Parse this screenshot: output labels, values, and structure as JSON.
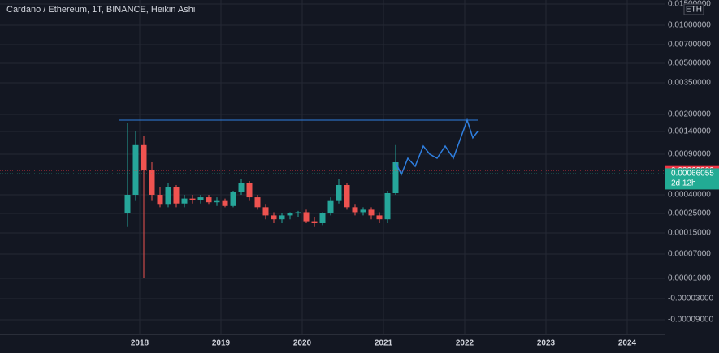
{
  "chart_data": {
    "type": "candlestick",
    "title": "Cardano / Ethereum, 1T, BINANCE, Heikin Ashi",
    "currency": "ETH",
    "up_color": "#26a69a",
    "down_color": "#ef5350",
    "grid": true,
    "x": [
      2017.85,
      2017.95,
      2018.05,
      2018.15,
      2018.25,
      2018.35,
      2018.45,
      2018.55,
      2018.65,
      2018.75,
      2018.85,
      2018.95,
      2019.05,
      2019.15,
      2019.25,
      2019.35,
      2019.45,
      2019.55,
      2019.65,
      2019.75,
      2019.85,
      2019.95,
      2020.05,
      2020.15,
      2020.25,
      2020.35,
      2020.45,
      2020.55,
      2020.65,
      2020.75,
      2020.85,
      2020.95,
      2021.05,
      2021.15
    ],
    "open": [
      0.00025,
      0.0004,
      0.0011,
      0.0007,
      0.0004,
      0.00032,
      0.0005,
      0.00033,
      0.00037,
      0.00036,
      0.00038,
      0.00034,
      0.00035,
      0.00031,
      0.00043,
      0.00055,
      0.00038,
      0.0003,
      0.00024,
      0.00022,
      0.00024,
      0.00025,
      0.00026,
      0.00021,
      0.0002,
      0.00025,
      0.00035,
      0.00052,
      0.0003,
      0.00026,
      0.00028,
      0.00024,
      0.00022,
      0.00042
    ],
    "high": [
      0.0017,
      0.0014,
      0.0013,
      0.0008,
      0.0005,
      0.00055,
      0.00052,
      0.0004,
      0.0004,
      0.0004,
      0.0004,
      0.00038,
      0.00037,
      0.00045,
      0.0006,
      0.00057,
      0.0004,
      0.00032,
      0.00026,
      0.00025,
      0.00026,
      0.00027,
      0.00028,
      0.00023,
      0.00026,
      0.00038,
      0.0006,
      0.00054,
      0.00032,
      0.0003,
      0.0003,
      0.00026,
      0.00045,
      0.0011
    ],
    "low": [
      0.00018,
      0.00035,
      1e-05,
      0.00035,
      0.0003,
      0.0003,
      0.0003,
      0.0003,
      0.00033,
      0.00033,
      0.00032,
      0.00031,
      0.0003,
      0.0003,
      0.0004,
      0.00035,
      0.00028,
      0.00022,
      0.0002,
      0.0002,
      0.00022,
      0.00023,
      0.0002,
      0.00018,
      0.00019,
      0.00024,
      0.00033,
      0.00028,
      0.00024,
      0.00024,
      0.00022,
      0.0002,
      0.0002,
      0.0004
    ],
    "close": [
      0.0004,
      0.0011,
      0.0007,
      0.0004,
      0.00032,
      0.0005,
      0.00033,
      0.00037,
      0.00036,
      0.00038,
      0.00034,
      0.00035,
      0.00031,
      0.00043,
      0.00055,
      0.00038,
      0.0003,
      0.00024,
      0.00022,
      0.00024,
      0.00025,
      0.00026,
      0.00021,
      0.0002,
      0.00025,
      0.00035,
      0.00052,
      0.0003,
      0.00026,
      0.00028,
      0.00024,
      0.00022,
      0.00042,
      0.0008
    ],
    "drawings": [
      {
        "color": "#2f7fe0",
        "x": [
          2017.75,
          2022.16
        ],
        "y": [
          0.0018,
          0.0018
        ]
      },
      {
        "color": "#2f7fe0",
        "x": [
          2021.15,
          2021.22,
          2021.3,
          2021.39,
          2021.49,
          2021.57,
          2021.66,
          2021.76,
          2021.86,
          2022.03,
          2022.1,
          2022.16
        ],
        "y": [
          0.0008,
          0.00065,
          0.00085,
          0.00075,
          0.00108,
          0.0009,
          0.00085,
          0.00108,
          0.00085,
          0.0018,
          0.00126,
          0.0014
        ]
      }
    ],
    "price_labels": [
      {
        "value": 0.00069809,
        "color": "#f23645"
      },
      {
        "value": 0.00066055,
        "color": "#22ab94",
        "countdown": "2d 12h"
      }
    ],
    "xlim": [
      2016.28,
      2024.46
    ],
    "xticks": [
      2018,
      2019,
      2020,
      2021,
      2022,
      2023,
      2024
    ],
    "yticks": [
      {
        "value": 0.015,
        "label": "0.01500000"
      },
      {
        "value": 0.01,
        "label": "0.01000000"
      },
      {
        "value": 0.007,
        "label": "0.00700000"
      },
      {
        "value": 0.005,
        "label": "0.00500000"
      },
      {
        "value": 0.0035,
        "label": "0.00350000"
      },
      {
        "value": 0.002,
        "label": "0.00200000"
      },
      {
        "value": 0.0014,
        "label": "0.00140000"
      },
      {
        "value": 0.0009,
        "label": "0.00090000"
      },
      {
        "value": 0.0004,
        "label": "0.00040000"
      },
      {
        "value": 0.00025,
        "label": "0.00025000"
      },
      {
        "value": 0.00015,
        "label": "0.00015000"
      },
      {
        "value": 7e-05,
        "label": "0.00007000"
      },
      {
        "value": 1e-05,
        "label": "0.00001000"
      },
      {
        "value": -3e-05,
        "label": "-0.00003000"
      },
      {
        "value": -9e-05,
        "label": "-0.00009000"
      }
    ]
  }
}
